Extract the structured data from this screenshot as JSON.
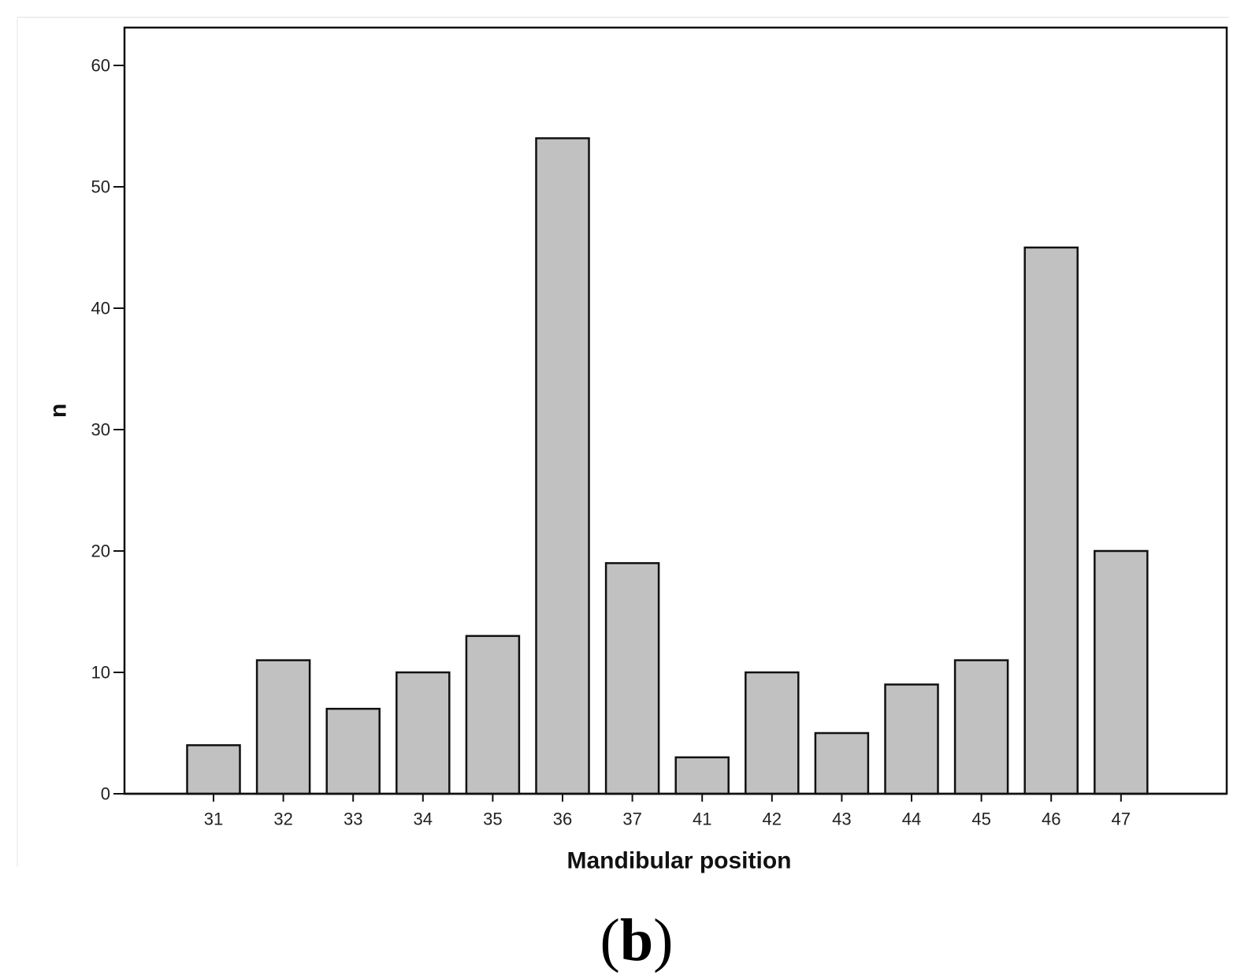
{
  "panel_label": {
    "open": "(",
    "letter": "b",
    "close": ")"
  },
  "chart_data": {
    "type": "bar",
    "title": "",
    "xlabel": "Mandibular position",
    "ylabel": "n",
    "categories": [
      "31",
      "32",
      "33",
      "34",
      "35",
      "36",
      "37",
      "41",
      "42",
      "43",
      "44",
      "45",
      "46",
      "47"
    ],
    "values": [
      4,
      11,
      7,
      10,
      13,
      54,
      19,
      3,
      10,
      5,
      9,
      11,
      45,
      20
    ],
    "ylim": [
      0,
      60
    ],
    "yticks": [
      "0",
      "10",
      "20",
      "30",
      "40",
      "50",
      "60"
    ],
    "grid": false,
    "legend": "none",
    "bar_color": "#c1c1c1",
    "bar_edge_color": "#111111",
    "background": "#ffffff"
  }
}
